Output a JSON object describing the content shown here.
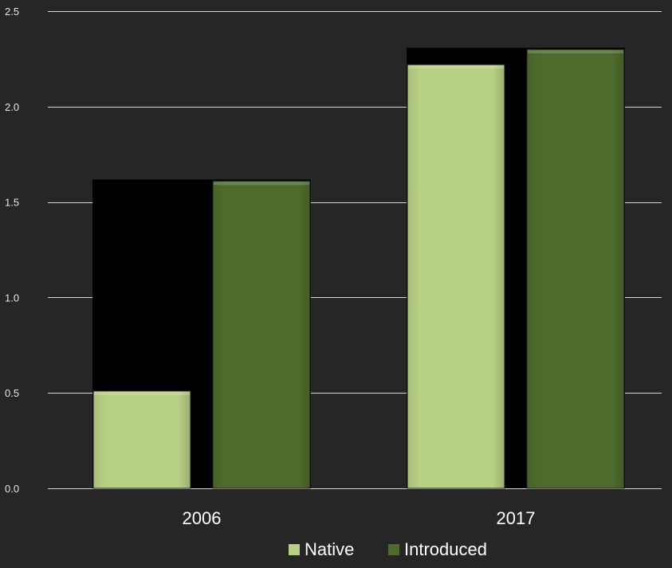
{
  "chart_data": {
    "type": "bar",
    "categories": [
      "2006",
      "2017"
    ],
    "series": [
      {
        "name": "Native",
        "values": [
          0.51,
          2.22
        ],
        "color": "#b7cf83"
      },
      {
        "name": "Introduced",
        "values": [
          1.61,
          2.3
        ],
        "color": "#4e6b2c"
      }
    ],
    "ylim": [
      0,
      2.5
    ],
    "yticks": [
      "0.0",
      "0.5",
      "1.0",
      "1.5",
      "2.0",
      "2.5"
    ],
    "ytick_values": [
      0,
      0.5,
      1.0,
      1.5,
      2.0,
      2.5
    ],
    "grid": true,
    "legend_position": "bottom",
    "background_color": "#262626",
    "grid_color": "#d9d9d9"
  }
}
